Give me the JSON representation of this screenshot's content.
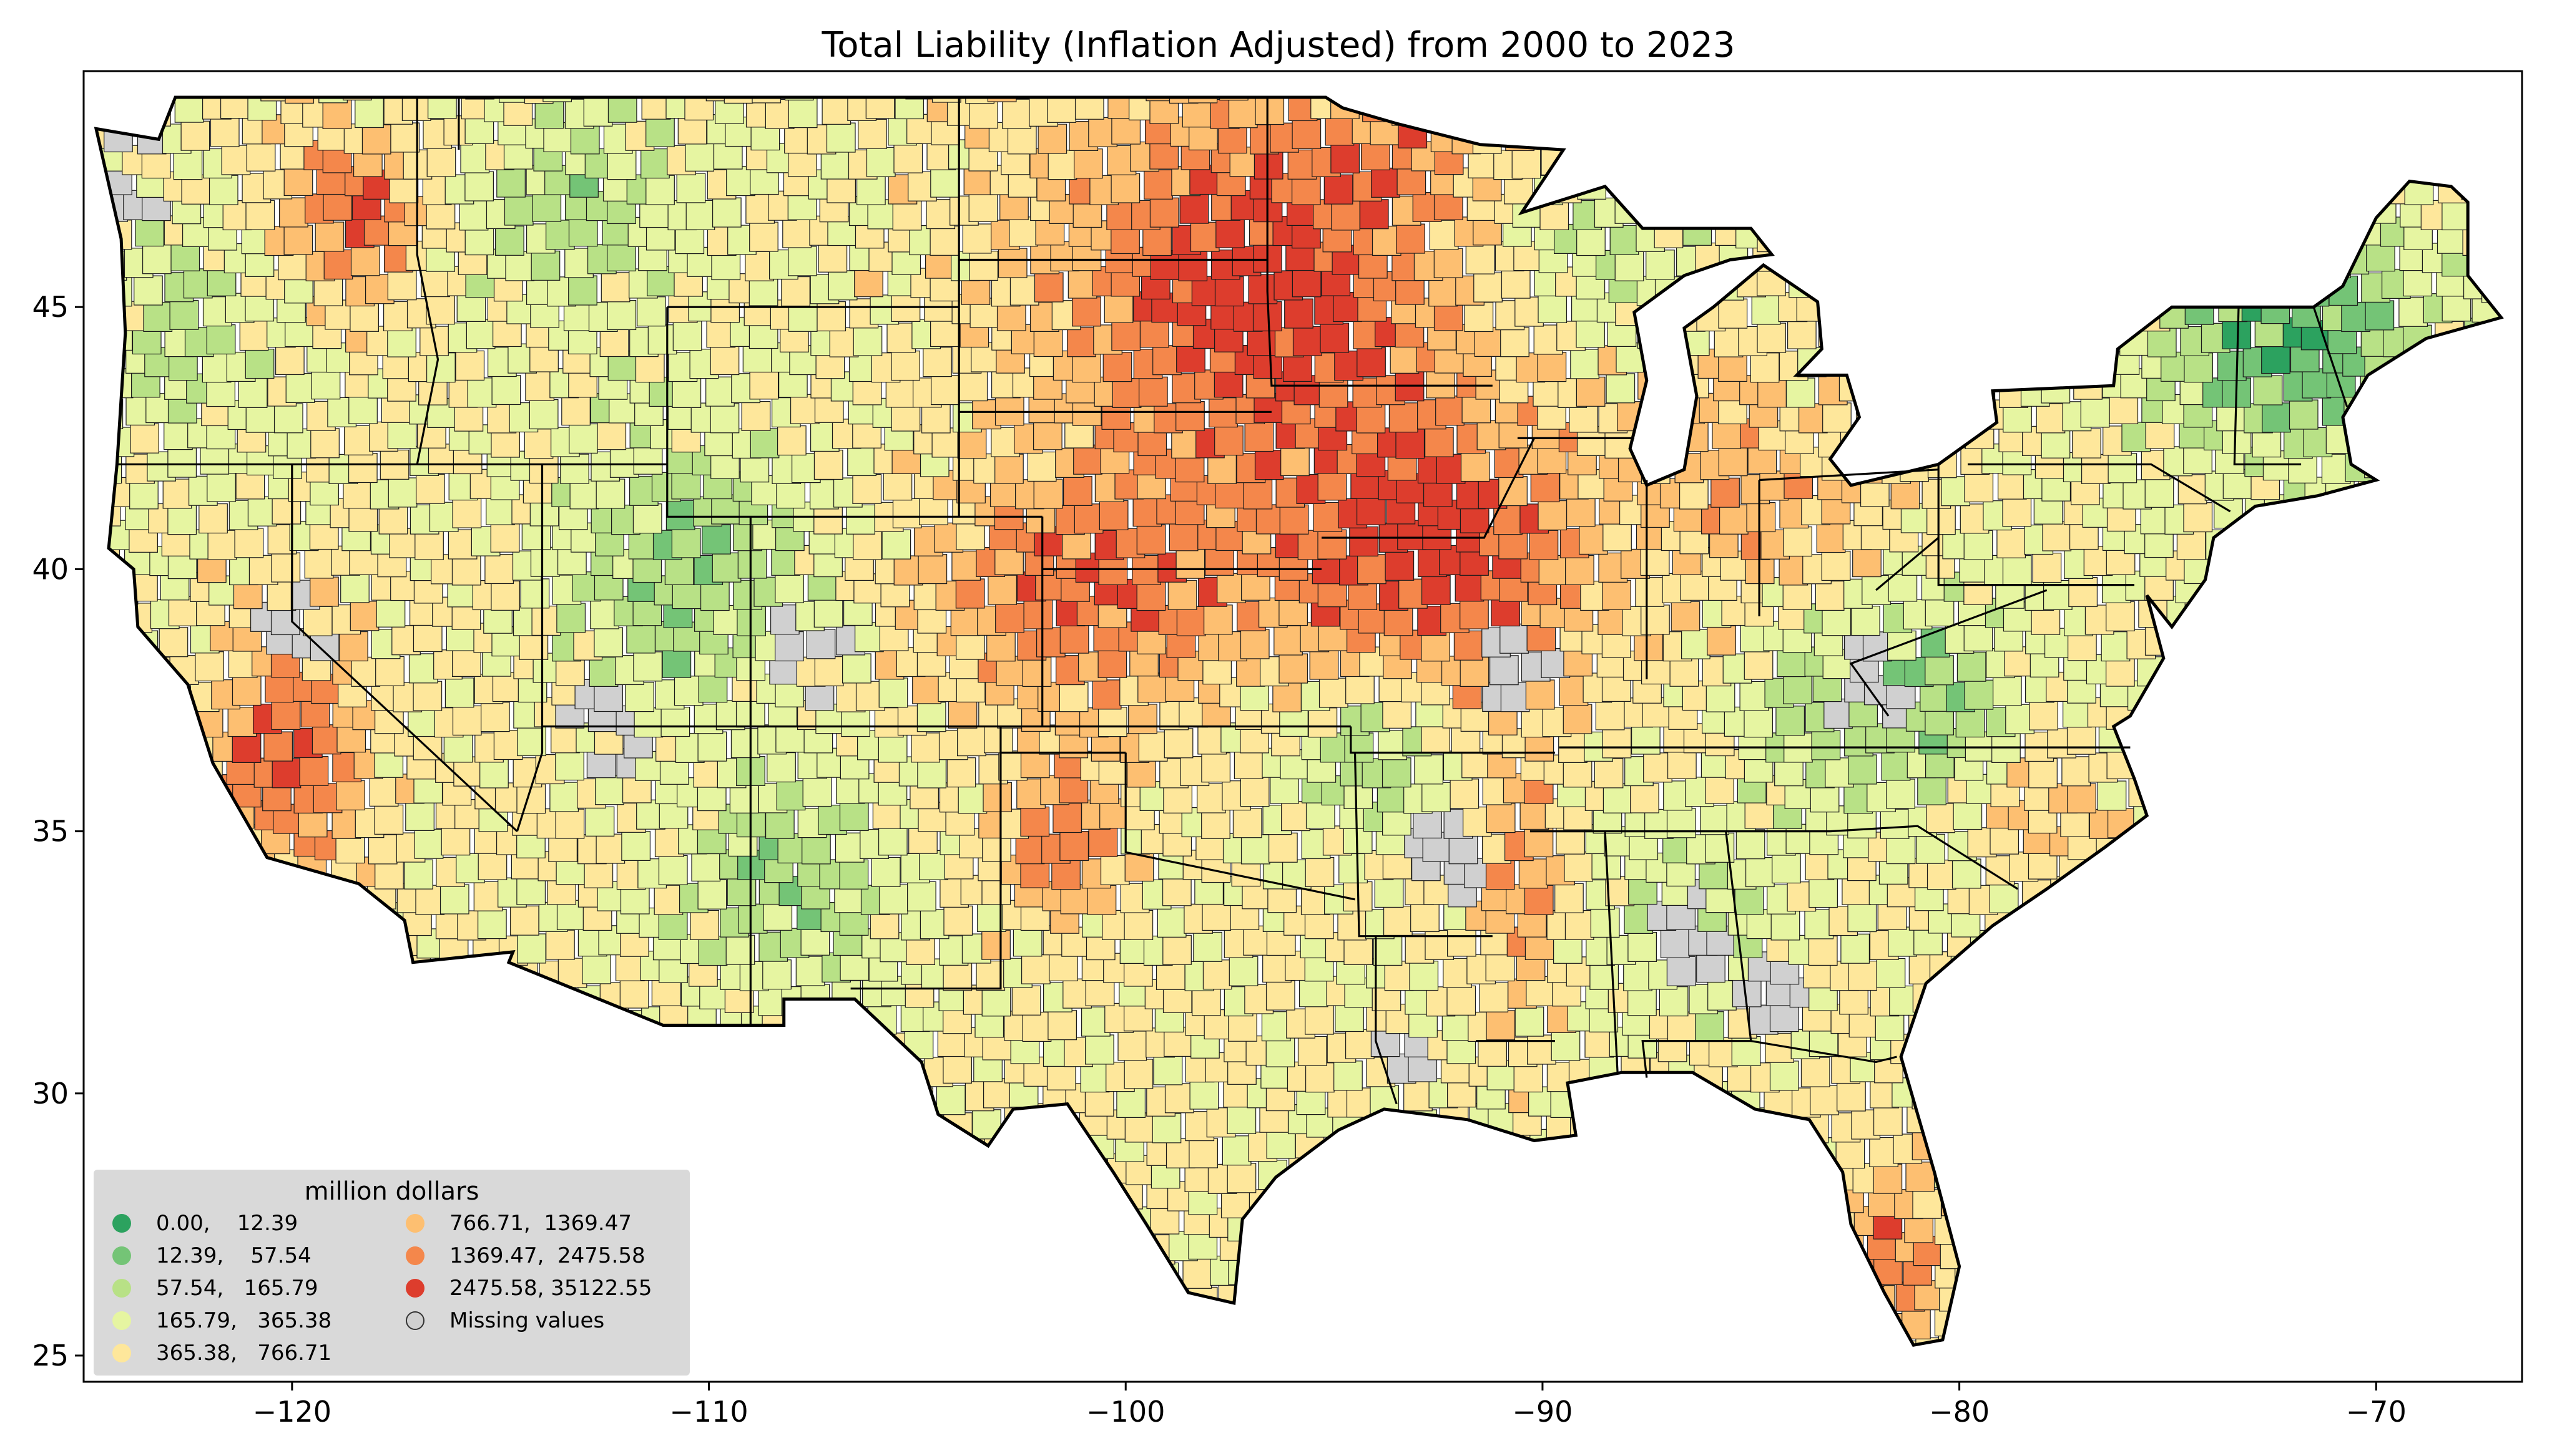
{
  "chart_data": {
    "type": "choropleth",
    "title": "Total Liability  (Inflation Adjusted) from 2000 to 2023",
    "xlim": [
      -125,
      -66.5
    ],
    "ylim": [
      24.5,
      49.5
    ],
    "x_ticks": [
      {
        "value": -120,
        "label": "−120"
      },
      {
        "value": -110,
        "label": "−110"
      },
      {
        "value": -100,
        "label": "−100"
      },
      {
        "value": -90,
        "label": "−90"
      },
      {
        "value": -80,
        "label": "−80"
      },
      {
        "value": -70,
        "label": "−70"
      }
    ],
    "y_ticks": [
      {
        "value": 25,
        "label": "25"
      },
      {
        "value": 30,
        "label": "30"
      },
      {
        "value": 35,
        "label": "35"
      },
      {
        "value": 40,
        "label": "40"
      },
      {
        "value": 45,
        "label": "45"
      }
    ],
    "grid": false,
    "legend": {
      "title": "million dollars",
      "placement": "lower-left",
      "entries": [
        {
          "label": "0.00,    12.39",
          "color": "#2ca25f"
        },
        {
          "label": "12.39,    57.54",
          "color": "#74c476"
        },
        {
          "label": "57.54,   165.79",
          "color": "#b8e186"
        },
        {
          "label": "165.79,   365.38",
          "color": "#e6f5a1"
        },
        {
          "label": "365.38,   766.71",
          "color": "#fee79b"
        },
        {
          "label": "766.71,  1369.47",
          "color": "#fdbf71"
        },
        {
          "label": "1369.47,  2475.58",
          "color": "#f4874b"
        },
        {
          "label": "2475.58, 35122.55",
          "color": "#dd3d2d"
        },
        {
          "label": "Missing values",
          "color": "#d0d0d0"
        }
      ]
    }
  }
}
